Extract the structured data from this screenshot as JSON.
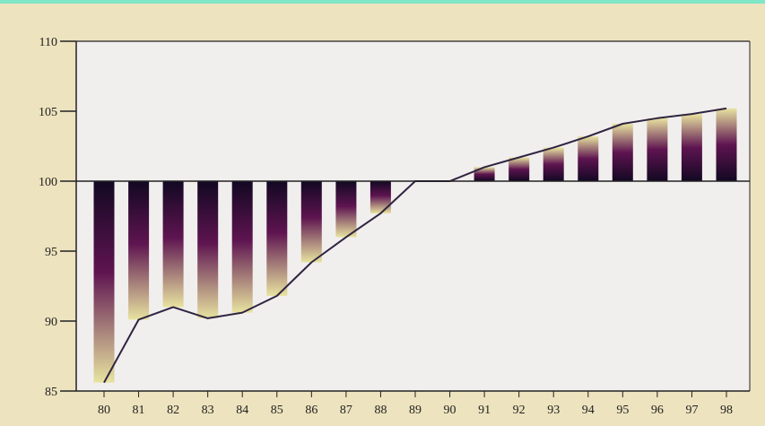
{
  "chart_data": {
    "type": "bar",
    "title": "",
    "xlabel": "",
    "ylabel": "",
    "baseline": 100,
    "ylim": [
      85,
      110
    ],
    "yticks": [
      85,
      90,
      95,
      100,
      105,
      110
    ],
    "grid": false,
    "legend": "none",
    "categories": [
      "80",
      "81",
      "82",
      "83",
      "84",
      "85",
      "86",
      "87",
      "88",
      "89",
      "90",
      "91",
      "92",
      "93",
      "94",
      "95",
      "96",
      "97",
      "98"
    ],
    "series": [
      {
        "type": "bar",
        "values": [
          85.6,
          90.1,
          91.0,
          90.2,
          90.6,
          91.8,
          94.2,
          96.0,
          97.7,
          100.0,
          100.0,
          101.0,
          101.7,
          102.4,
          103.2,
          104.1,
          104.5,
          104.8,
          105.2
        ]
      },
      {
        "type": "line",
        "values": [
          85.6,
          90.1,
          91.0,
          90.2,
          90.6,
          91.8,
          94.2,
          96.0,
          97.7,
          100.0,
          100.0,
          101.0,
          101.7,
          102.4,
          103.2,
          104.1,
          104.5,
          104.8,
          105.2
        ]
      }
    ],
    "colors": {
      "frame_background": "#EDE3BE",
      "plot_background": "#F1EEEE",
      "bar_dark": "#120822",
      "bar_mid": "#5E1450",
      "bar_light": "#E8E3A0",
      "line": "#2E2440",
      "axis": "#222222",
      "top_border": "#7FE6C8"
    }
  }
}
